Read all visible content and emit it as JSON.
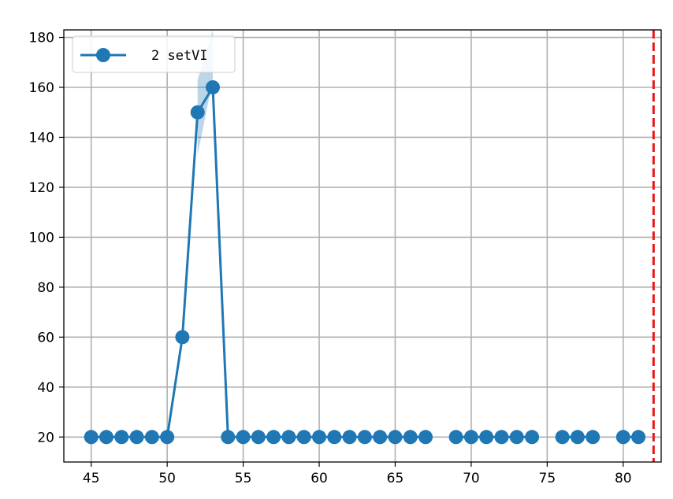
{
  "chart_data": {
    "type": "line",
    "title": "",
    "xlabel": "",
    "ylabel": "",
    "xlim": [
      43.2,
      82.5
    ],
    "ylim": [
      10,
      183
    ],
    "grid": true,
    "x_ticks": [
      45,
      50,
      55,
      60,
      65,
      70,
      75,
      80
    ],
    "y_ticks": [
      20,
      40,
      60,
      80,
      100,
      120,
      140,
      160,
      180
    ],
    "legend": {
      "placement": "top-left",
      "entries": [
        "2 setVI"
      ]
    },
    "series": [
      {
        "name": "2 setVI",
        "color": "#1f77b4",
        "marker": "circle",
        "segments": [
          [
            [
              45,
              20
            ],
            [
              46,
              20
            ],
            [
              47,
              20
            ],
            [
              48,
              20
            ],
            [
              49,
              20
            ],
            [
              50,
              20
            ],
            [
              51,
              60
            ],
            [
              52,
              150
            ],
            [
              53,
              160
            ],
            [
              54,
              20
            ],
            [
              55,
              20
            ],
            [
              56,
              20
            ],
            [
              57,
              20
            ],
            [
              58,
              20
            ],
            [
              59,
              20
            ],
            [
              60,
              20
            ],
            [
              61,
              20
            ],
            [
              62,
              20
            ],
            [
              63,
              20
            ],
            [
              64,
              20
            ],
            [
              65,
              20
            ],
            [
              66,
              20
            ],
            [
              67,
              20
            ]
          ],
          [
            [
              69,
              20
            ],
            [
              70,
              20
            ],
            [
              71,
              20
            ],
            [
              72,
              20
            ],
            [
              73,
              20
            ],
            [
              74,
              20
            ]
          ],
          [
            [
              76,
              20
            ],
            [
              77,
              20
            ],
            [
              78,
              20
            ]
          ],
          [
            [
              80,
              20
            ],
            [
              81,
              20
            ]
          ]
        ],
        "band": {
          "color": "#1f77b4",
          "points": [
            [
              52,
              133,
              163
            ],
            [
              53,
              163,
              183
            ]
          ]
        }
      }
    ],
    "reference_line": {
      "orientation": "vertical",
      "x": 82,
      "style": "dashed",
      "color": "#e8191c"
    }
  }
}
